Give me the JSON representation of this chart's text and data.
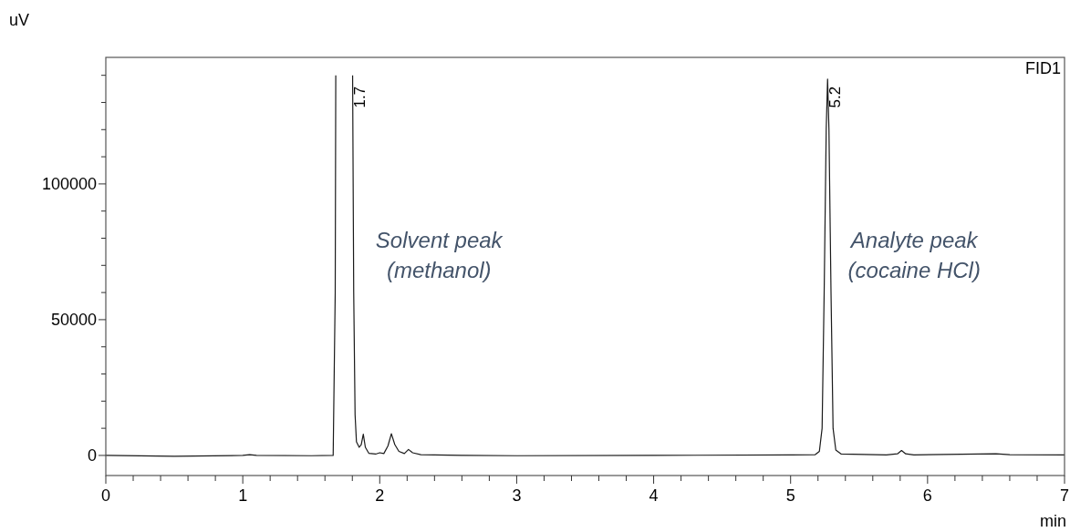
{
  "chart_data": {
    "type": "line",
    "xlabel": "min",
    "ylabel": "uV",
    "xlim": [
      0,
      7
    ],
    "ylim": [
      -7400,
      146600
    ],
    "xticks": [
      0,
      {
        "value": 0.2,
        "label": null
      },
      {
        "value": 0.4,
        "label": null
      },
      {
        "value": 0.6,
        "label": null
      },
      {
        "value": 0.8,
        "label": null
      },
      1,
      {
        "value": 1.2,
        "label": null
      },
      {
        "value": 1.4,
        "label": null
      },
      {
        "value": 1.6,
        "label": null
      },
      {
        "value": 1.8,
        "label": null
      },
      2,
      {
        "value": 2.2,
        "label": null
      },
      {
        "value": 2.4,
        "label": null
      },
      {
        "value": 2.6,
        "label": null
      },
      {
        "value": 2.8,
        "label": null
      },
      3,
      {
        "value": 3.2,
        "label": null
      },
      {
        "value": 3.4,
        "label": null
      },
      {
        "value": 3.6,
        "label": null
      },
      {
        "value": 3.8,
        "label": null
      },
      4,
      {
        "value": 4.2,
        "label": null
      },
      {
        "value": 4.4,
        "label": null
      },
      {
        "value": 4.6,
        "label": null
      },
      {
        "value": 4.8,
        "label": null
      },
      5,
      {
        "value": 5.2,
        "label": null
      },
      {
        "value": 5.4,
        "label": null
      },
      {
        "value": 5.6,
        "label": null
      },
      {
        "value": 5.8,
        "label": null
      },
      6,
      {
        "value": 6.2,
        "label": null
      },
      {
        "value": 6.4,
        "label": null
      },
      {
        "value": 6.6,
        "label": null
      },
      {
        "value": 6.8,
        "label": null
      },
      7
    ],
    "yticks": [
      0,
      {
        "value": 10000,
        "label": null
      },
      {
        "value": 20000,
        "label": null
      },
      {
        "value": 30000,
        "label": null
      },
      {
        "value": 40000,
        "label": null
      },
      50000,
      {
        "value": 60000,
        "label": null
      },
      {
        "value": 70000,
        "label": null
      },
      {
        "value": 80000,
        "label": null
      },
      {
        "value": 90000,
        "label": null
      },
      100000,
      {
        "value": 110000,
        "label": null
      },
      {
        "value": 120000,
        "label": null
      },
      {
        "value": 130000,
        "label": null
      },
      {
        "value": 140000,
        "label": null
      }
    ],
    "grid": false,
    "marker": "none",
    "line_style": "solid",
    "series": [
      {
        "color": "#1a1a1a",
        "x": [
          0,
          0.5,
          1.0,
          1.05,
          1.1,
          1.5,
          1.66,
          1.675,
          1.679,
          1.74,
          1.802,
          1.81,
          1.82,
          1.83,
          1.85,
          1.865,
          1.88,
          1.895,
          1.92,
          1.97,
          2.0,
          2.03,
          2.06,
          2.085,
          2.11,
          2.14,
          2.18,
          2.21,
          2.24,
          2.3,
          2.6,
          3,
          4,
          5,
          5.18,
          5.21,
          5.23,
          5.245,
          5.26,
          5.27,
          5.28,
          5.295,
          5.31,
          5.33,
          5.37,
          5.7,
          5.78,
          5.81,
          5.84,
          5.9,
          6.5,
          6.6,
          7
        ],
        "values": [
          0,
          -300,
          0,
          300,
          0,
          -100,
          0,
          60000,
          140000,
          null,
          140000,
          60000,
          15000,
          5000,
          3000,
          4000,
          7800,
          3000,
          800,
          500,
          1000,
          700,
          3500,
          8000,
          4000,
          1500,
          700,
          2200,
          1000,
          300,
          0,
          -100,
          0,
          200,
          300,
          1500,
          10000,
          60000,
          120000,
          138600,
          120000,
          60000,
          10000,
          2000,
          500,
          200,
          600,
          1800,
          600,
          200,
          600,
          300,
          200
        ]
      }
    ],
    "annotations": [
      {
        "text": "1.7",
        "x": 1.8,
        "y": 128000
      },
      {
        "text": "5.2",
        "x": 5.27,
        "y": 128000
      },
      "Solvent peak\n(methanol)",
      "Analyte peak\n(cocaine HCl)",
      "FID1"
    ]
  }
}
